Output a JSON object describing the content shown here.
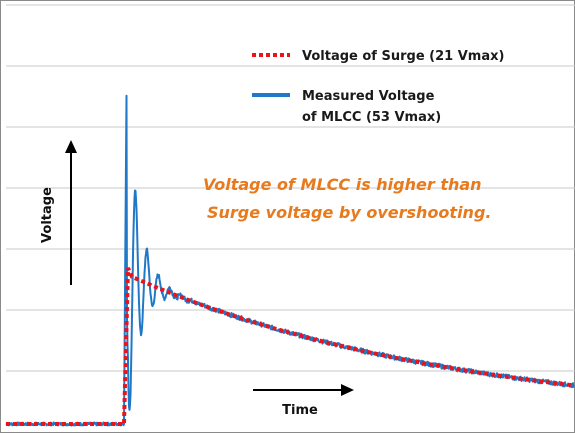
{
  "chart_data": {
    "type": "line",
    "title": "",
    "xlabel": "Time",
    "ylabel": "Voltage",
    "grid": true,
    "grid_axis": "y",
    "legend_placement": "top-right",
    "annotation": [
      "Voltage of MLCC is higher than",
      "Surge voltage by overshooting."
    ],
    "series": [
      {
        "name": "Voltage of Surge (21 Vmax)",
        "style": "dotted",
        "color": "#e8141c",
        "peak_voltage": 21
      },
      {
        "name": "Measured Voltage of MLCC (53 Vmax)",
        "legend_lines": [
          "Measured Voltage",
          "of MLCC (53 Vmax)"
        ],
        "style": "solid",
        "color": "#1f78c8",
        "peak_voltage": 53
      }
    ],
    "colors": {
      "axis_arrow": "#000000",
      "grid": "#c8c8c8",
      "annotation": "#e87a1e"
    }
  }
}
